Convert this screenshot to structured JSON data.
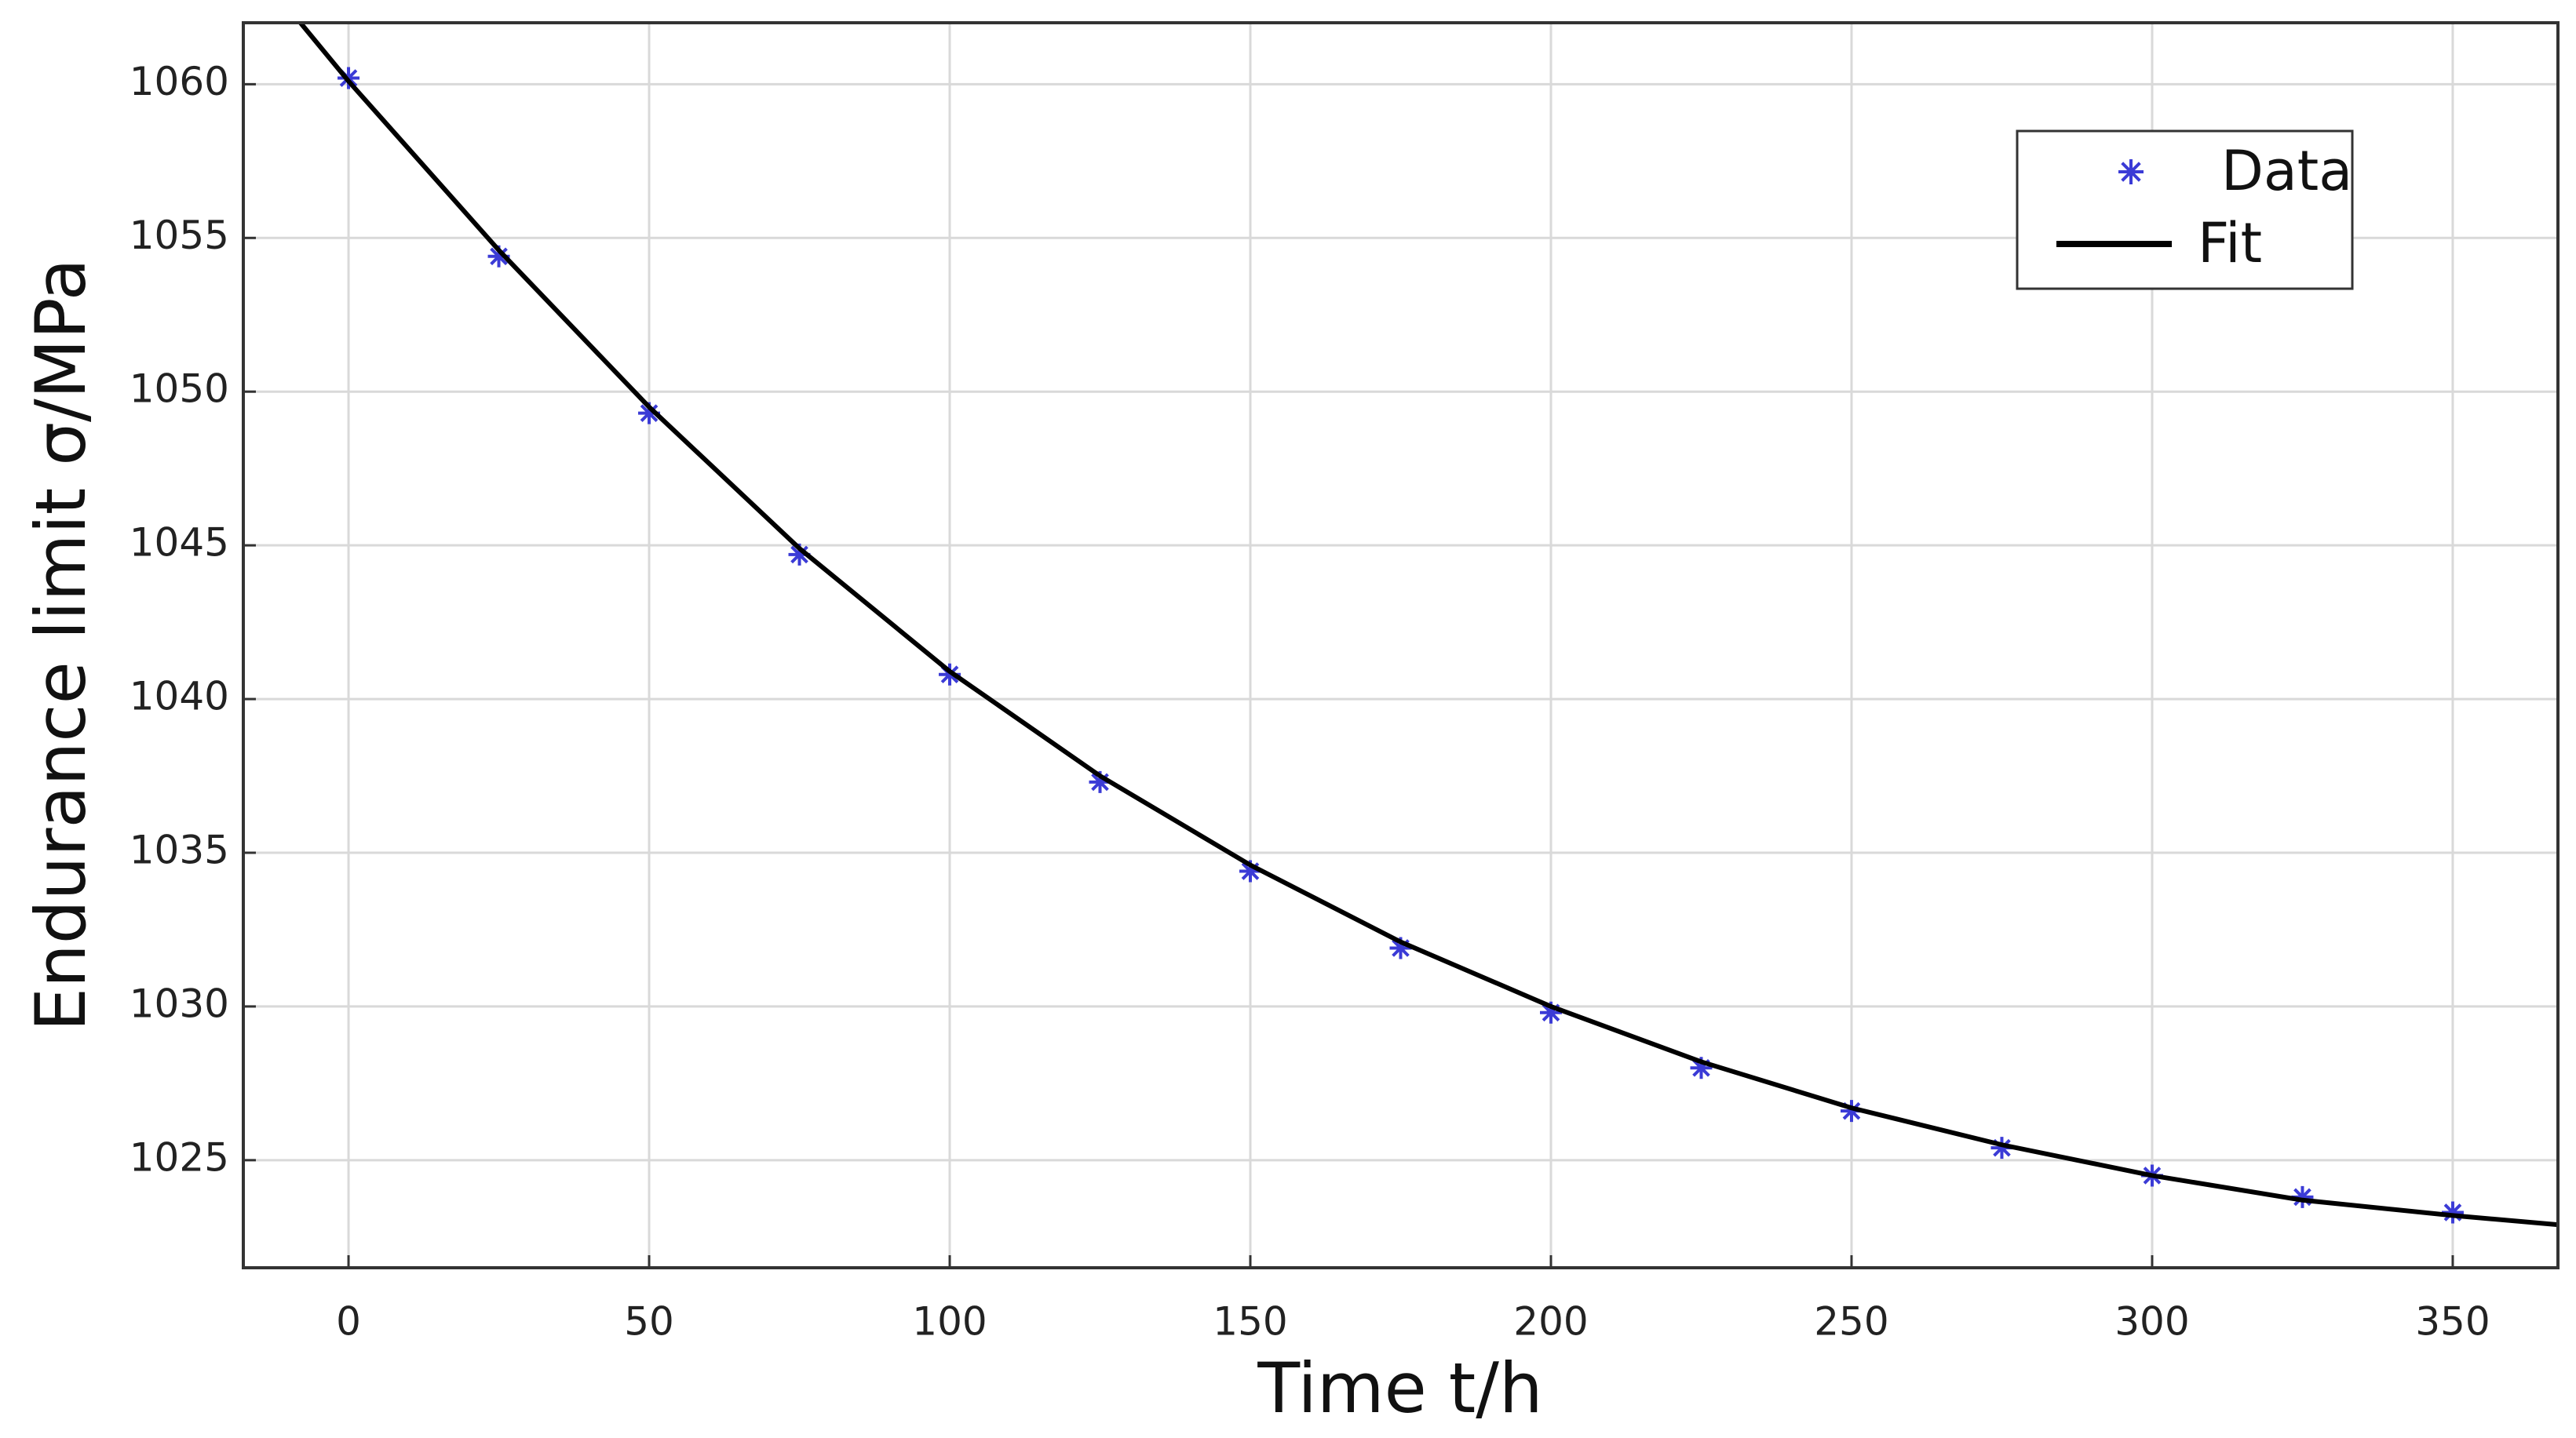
{
  "chart_data": {
    "type": "scatter",
    "xlabel": "Time  t/h",
    "ylabel": "Endurance limit  σ/MPa",
    "xlim": [
      -17.5,
      367.5
    ],
    "ylim": [
      1021.5,
      1062.0
    ],
    "xticks": [
      0,
      50,
      100,
      150,
      200,
      250,
      300,
      350
    ],
    "yticks": [
      1025,
      1030,
      1035,
      1040,
      1045,
      1050,
      1055,
      1060
    ],
    "grid": true,
    "legend": "upper right",
    "series": [
      {
        "name": "Data",
        "color": "#3b3bd6",
        "marker": "asterisk",
        "x": [
          0,
          25,
          50,
          75,
          100,
          125,
          150,
          175,
          200,
          225,
          250,
          275,
          300,
          325,
          350
        ],
        "values": [
          1060.2,
          1054.4,
          1049.3,
          1044.7,
          1040.8,
          1037.3,
          1034.4,
          1031.9,
          1029.8,
          1028.0,
          1026.6,
          1025.4,
          1024.5,
          1023.8,
          1023.3
        ]
      },
      {
        "name": "Fit",
        "color": "#000000",
        "marker": "line",
        "x": [
          -8,
          0,
          25,
          50,
          75,
          100,
          125,
          150,
          175,
          200,
          225,
          250,
          275,
          300,
          325,
          350,
          367.5
        ],
        "values": [
          1062.0,
          1060.1,
          1054.6,
          1049.5,
          1044.9,
          1040.9,
          1037.5,
          1034.6,
          1032.1,
          1030.0,
          1028.2,
          1026.7,
          1025.5,
          1024.5,
          1023.7,
          1023.2,
          1022.9
        ]
      }
    ]
  }
}
